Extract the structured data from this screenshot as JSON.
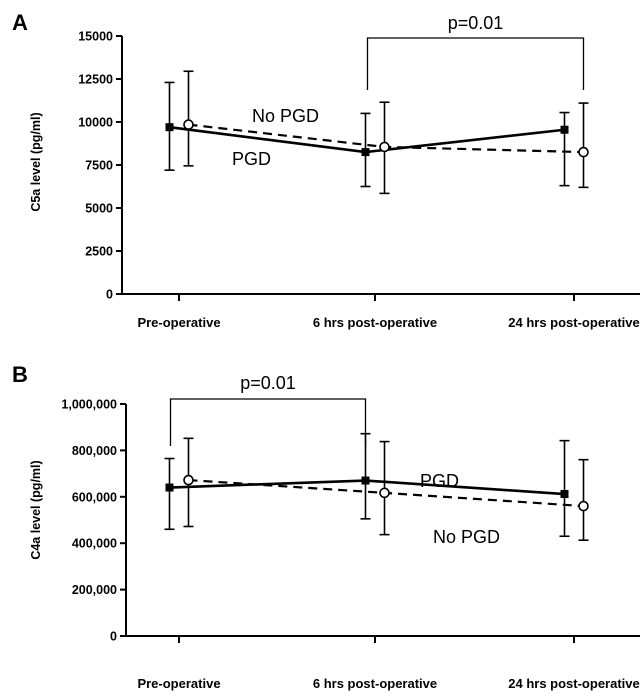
{
  "chart_data": [
    {
      "type": "line",
      "panel": "A",
      "ylabel": "C5a level (pg/ml)",
      "xlabel": "",
      "categories": [
        "Pre-operative",
        "6 hrs post-operative",
        "24 hrs post-operative"
      ],
      "ylim": [
        0,
        15000
      ],
      "yticks": [
        0,
        2500,
        5000,
        7500,
        10000,
        12500,
        15000
      ],
      "ytick_labels": [
        "0",
        "2500",
        "5000",
        "7500",
        "10000",
        "12500",
        "15000"
      ],
      "series": [
        {
          "name": "PGD",
          "style": "solid",
          "marker": "square",
          "values": [
            9700,
            8250,
            9550
          ],
          "err_low": [
            7200,
            6250,
            6300
          ],
          "err_high": [
            12300,
            10500,
            10550
          ]
        },
        {
          "name": "No PGD",
          "style": "dashed",
          "marker": "open-circle",
          "values": [
            9850,
            8550,
            8250
          ],
          "err_low": [
            7450,
            5850,
            6200
          ],
          "err_high": [
            12950,
            11150,
            11100
          ]
        }
      ],
      "significance": {
        "text": "p=0.01",
        "from": 1,
        "to": 2
      }
    },
    {
      "type": "line",
      "panel": "B",
      "ylabel": "C4a level (pg/ml)",
      "xlabel": "",
      "categories": [
        "Pre-operative",
        "6 hrs post-operative",
        "24 hrs post-operative"
      ],
      "ylim": [
        0,
        1000000
      ],
      "yticks": [
        0,
        200000,
        400000,
        600000,
        800000,
        1000000
      ],
      "ytick_labels": [
        "0",
        "200,000",
        "400,000",
        "600,000",
        "800,000",
        "1,000,000"
      ],
      "series": [
        {
          "name": "PGD",
          "style": "solid",
          "marker": "square",
          "values": [
            640000,
            670000,
            612000
          ],
          "err_low": [
            460000,
            505000,
            430000
          ],
          "err_high": [
            765000,
            872000,
            842000
          ]
        },
        {
          "name": "No PGD",
          "style": "dashed",
          "marker": "open-circle",
          "values": [
            672000,
            617000,
            560000
          ],
          "err_low": [
            472000,
            437000,
            413000
          ],
          "err_high": [
            852000,
            838000,
            760000
          ]
        }
      ],
      "significance": {
        "text": "p=0.01",
        "from": 0,
        "to": 1
      }
    }
  ]
}
